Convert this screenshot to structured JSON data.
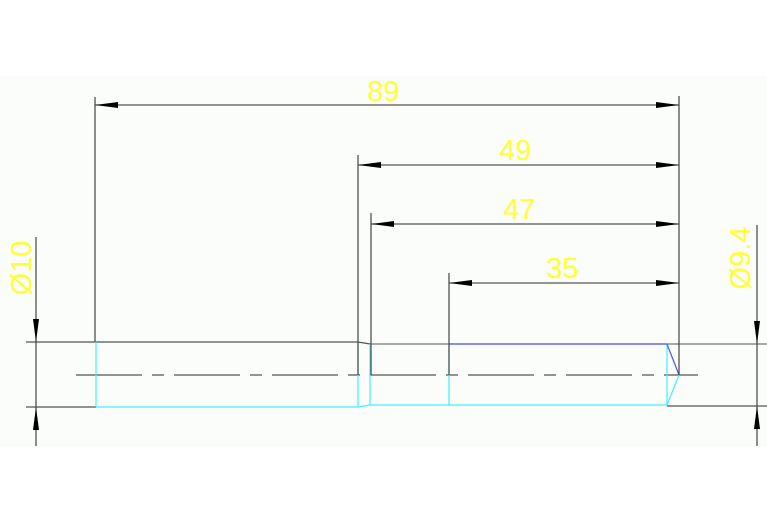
{
  "drawing": {
    "background": "#fbfdfa",
    "colors": {
      "dimension_text": "#ffff33",
      "dimension_line": "#4a4a4a",
      "part_hidden_edge": "#44eeff",
      "part_highlight_edge": "#5555ee",
      "center_line": "#555555"
    },
    "dimensions": {
      "overall_length": "89",
      "length_49": "49",
      "length_47": "47",
      "length_35": "35",
      "diameter_left": "Ø10",
      "diameter_right": "Ø9.4"
    }
  }
}
